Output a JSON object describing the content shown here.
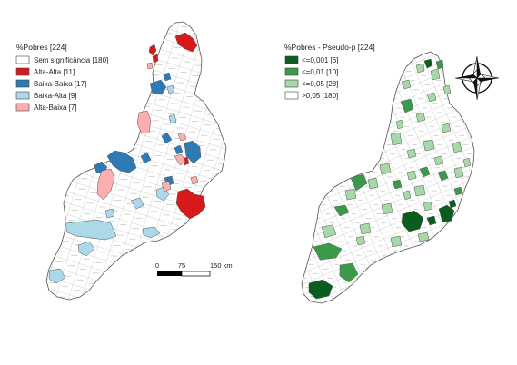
{
  "left_map": {
    "legend_title": "%Pobres [224]",
    "classes": [
      {
        "label": "Sem significância [180]",
        "color": "#ffffff"
      },
      {
        "label": "Alta-Alta [11]",
        "color": "#d7191c"
      },
      {
        "label": "Baixa-Baixa [17]",
        "color": "#2c7bb6"
      },
      {
        "label": "Baixa-Alta [9]",
        "color": "#abd9e9"
      },
      {
        "label": "Alta-Baixa [7]",
        "color": "#fdaeae"
      }
    ]
  },
  "right_map": {
    "legend_title": "%Pobres - Pseudo-p [224]",
    "classes": [
      {
        "label": "<=0,001 [6]",
        "color": "#0b5d1e"
      },
      {
        "label": "<=0,01 [10]",
        "color": "#3a9a4a"
      },
      {
        "label": "<=0,05 [28]",
        "color": "#a6d9a6"
      },
      {
        "label": ">0,05 [180]",
        "color": "#ffffff"
      }
    ]
  },
  "scale_bar": {
    "labels": [
      "0",
      "75",
      "150 km"
    ]
  },
  "compass": {
    "icon": "north-arrow-compass-icon"
  }
}
